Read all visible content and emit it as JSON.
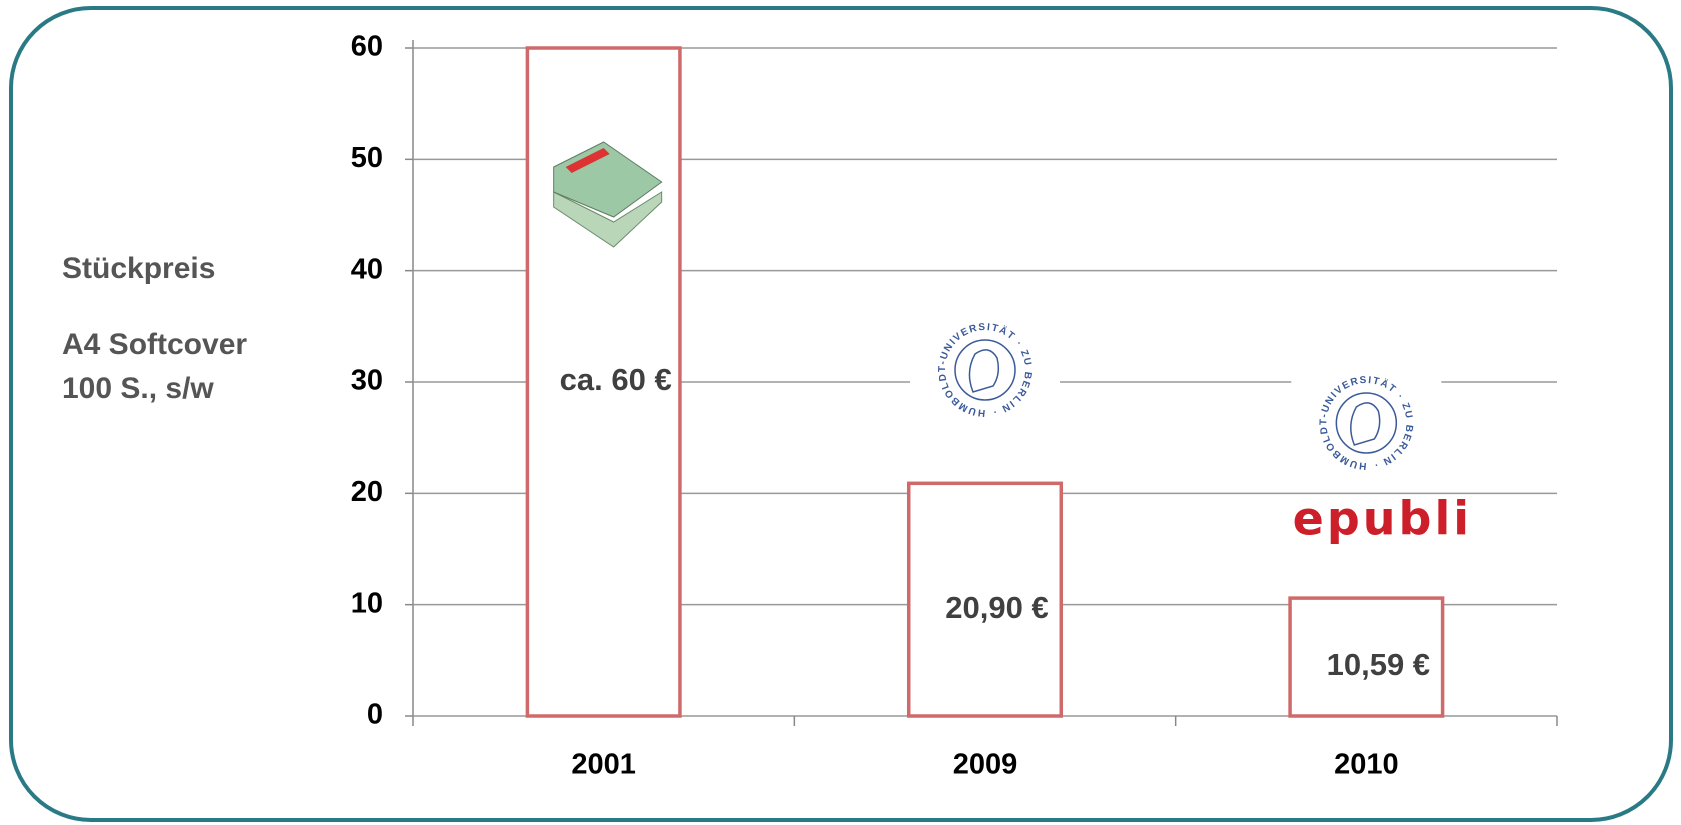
{
  "chart_data": {
    "type": "bar",
    "y_label_lines": [
      "Stückpreis",
      "A4 Softcover",
      "100 S., s/w"
    ],
    "categories": [
      "2001",
      "2009",
      "2010"
    ],
    "values": [
      60,
      20.9,
      10.59
    ],
    "value_labels": [
      "ca. 60 €",
      "20,90 €",
      "10,59 €"
    ],
    "color": "#d06a6a",
    "ylim": [
      0,
      60
    ],
    "yticks": [
      0,
      10,
      20,
      30,
      40,
      50,
      60
    ],
    "grid": true,
    "annotations": [
      "HUMBOLDT-UNIVERSITÄT · ZU BERLIN ·",
      "epubli"
    ]
  }
}
